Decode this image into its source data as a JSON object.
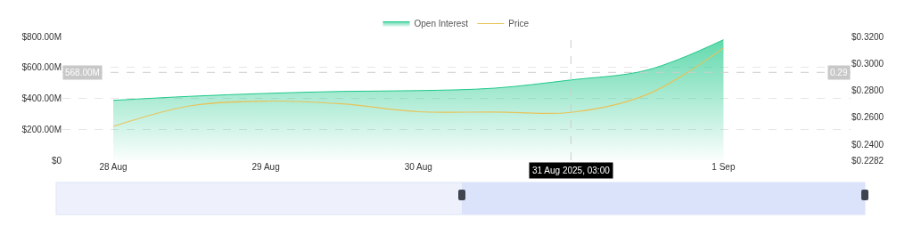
{
  "chart_data": {
    "type": "line",
    "x": [
      "2025-08-28T00:00",
      "2025-08-28T12:00",
      "2025-08-29T00:00",
      "2025-08-29T12:00",
      "2025-08-30T00:00",
      "2025-08-30T12:00",
      "2025-08-31T00:00",
      "2025-08-31T12:00",
      "2025-09-01T00:00"
    ],
    "series": [
      {
        "name": "Price",
        "color": "#e8c35a",
        "type": "line",
        "axis": "y2",
        "values": [
          0.2533,
          0.2685,
          0.2721,
          0.27,
          0.2642,
          0.264,
          0.2637,
          0.277,
          0.3115
        ]
      },
      {
        "name": "Open Interest",
        "color": "#1ec98a",
        "type": "area",
        "values": [
          387,
          413,
          432,
          445,
          450,
          466,
          519,
          583,
          779
        ]
      }
    ],
    "ylim": [
      0,
      800
    ],
    "yticks": [
      {
        "value": 0,
        "label": "$0"
      },
      {
        "value": 200,
        "label": "$200.00M"
      },
      {
        "value": 400,
        "label": "$400.00M"
      },
      {
        "value": 600,
        "label": "$600.00M"
      },
      {
        "value": 800,
        "label": "$800.00M"
      }
    ],
    "y2lim": [
      0.2282,
      0.32
    ],
    "y2ticks": [
      {
        "value": 0.2282,
        "label": "$0.2282"
      },
      {
        "value": 0.24,
        "label": "$0.2400"
      },
      {
        "value": 0.26,
        "label": "$0.2600"
      },
      {
        "value": 0.28,
        "label": "$0.2800"
      },
      {
        "value": 0.3,
        "label": "$0.3000"
      },
      {
        "value": 0.32,
        "label": "$0.3200"
      }
    ],
    "xlim": [
      "2025-08-27T16:00",
      "2025-09-01T20:00"
    ],
    "xticks": [
      {
        "value": "2025-08-28T00:00",
        "label": "28 Aug"
      },
      {
        "value": "2025-08-29T00:00",
        "label": "29 Aug"
      },
      {
        "value": "2025-08-30T00:00",
        "label": "30 Aug"
      },
      {
        "value": "2025-09-01T00:00",
        "label": "1 Sep"
      }
    ],
    "ref_lines": [
      {
        "axis": "x",
        "value": "2025-08-31T00:00",
        "label": "31 Aug 2025, 03:00",
        "color": "#cccccc",
        "line_style": "dashed"
      },
      {
        "axis": "y",
        "value": 568,
        "label": "568.00M",
        "color": "#cccccc",
        "line_style": "dashed"
      }
    ],
    "annotations": [
      "0.29"
    ],
    "grid": "y",
    "legend": "top",
    "marker": "none",
    "line_style": "solid"
  }
}
